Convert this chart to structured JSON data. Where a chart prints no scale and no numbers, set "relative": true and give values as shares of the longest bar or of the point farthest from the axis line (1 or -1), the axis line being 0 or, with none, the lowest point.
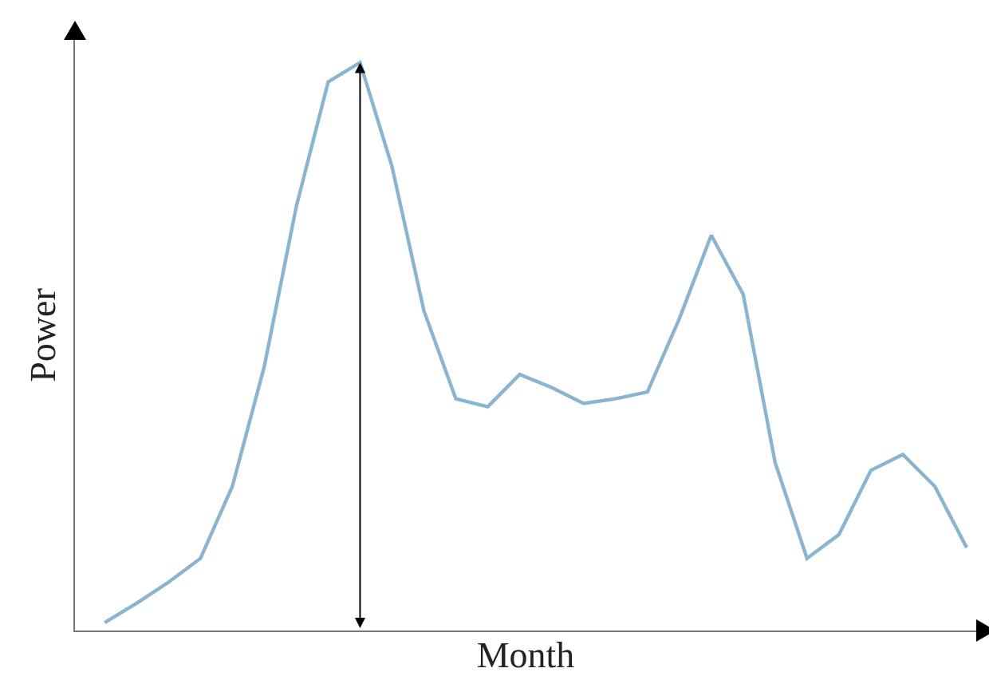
{
  "chart_data": {
    "type": "line",
    "relative": true,
    "xlabel": "Month",
    "ylabel": "Power",
    "marker": "none",
    "line_style": "solid",
    "categories": [
      null,
      null,
      null,
      null,
      null,
      null,
      null,
      null,
      null,
      null,
      null,
      null,
      null,
      null,
      null,
      null,
      null,
      null,
      null,
      null,
      null,
      null,
      null,
      null,
      null,
      null,
      null,
      null
    ],
    "series": [
      {
        "color": "#8ab4cf",
        "values": [
          0.014,
          0.048,
          0.085,
          0.127,
          0.254,
          0.465,
          0.746,
          0.966,
          1,
          0.817,
          0.563,
          0.408,
          0.394,
          0.451,
          0.428,
          0.4,
          0.408,
          0.42,
          0.549,
          0.696,
          0.592,
          0.296,
          0.127,
          0.169,
          0.282,
          0.31,
          0.254,
          0.146
        ]
      }
    ]
  }
}
